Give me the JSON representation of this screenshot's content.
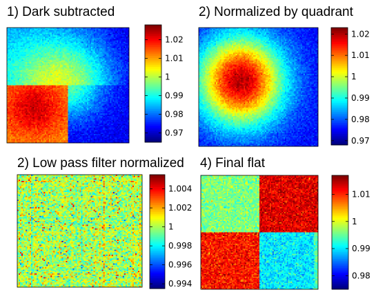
{
  "panels": [
    {
      "title": "1) Dark subtracted"
    },
    {
      "title": "2) Normalized by quadrant"
    },
    {
      "title": "2) Low pass filter normalized"
    },
    {
      "title": "4) Final flat"
    }
  ],
  "chart_data": [
    {
      "type": "heatmap",
      "title": "1) Dark subtracted",
      "description_pattern": "top half smooth low values, bottom-left warm high, bottom-right cool low",
      "colorbar": {
        "min": 0.965,
        "max": 1.028,
        "ticks": [
          0.97,
          0.98,
          0.99,
          1,
          1.01,
          1.02
        ],
        "tick_labels": [
          "0.97",
          "0.98",
          "0.99",
          "1",
          "1.01",
          "1.02"
        ]
      },
      "quadrant_means": {
        "top_left": 0.995,
        "top_right": 0.99,
        "bottom_left": 1.02,
        "bottom_right": 0.983
      },
      "grid": false
    },
    {
      "type": "heatmap",
      "title": "2) Normalized by quadrant",
      "colorbar": {
        "min": 0.968,
        "max": 1.023,
        "ticks": [
          0.97,
          0.98,
          0.99,
          1,
          1.01,
          1.02
        ],
        "tick_labels": [
          "0.97",
          "0.98",
          "0.99",
          "1",
          "1.01",
          "1.02"
        ]
      },
      "peak_value": 1.018,
      "edge_value": 0.975,
      "grid": false
    },
    {
      "type": "heatmap",
      "title": "2) Low pass filter normalized",
      "colorbar": {
        "min": 0.9935,
        "max": 1.0055,
        "ticks": [
          0.994,
          0.996,
          0.998,
          1,
          1.002,
          1.004
        ],
        "tick_labels": [
          "0.994",
          "0.996",
          "0.998",
          "1",
          "1.002",
          "1.004"
        ]
      },
      "mean": 1.0,
      "grid": false
    },
    {
      "type": "heatmap",
      "title": "4) Final flat",
      "colorbar": {
        "min": 0.975,
        "max": 1.017,
        "ticks": [
          0.98,
          0.99,
          1,
          1.01
        ],
        "tick_labels": [
          "0.98",
          "0.99",
          "1",
          "1.01"
        ]
      },
      "quadrant_means": {
        "top_left": 0.996,
        "top_right": 1.013,
        "bottom_left": 1.011,
        "bottom_right": 0.99
      },
      "grid": false
    }
  ],
  "colors": {
    "colormap": "jet",
    "axes_border": "#000000",
    "background": "#ffffff"
  }
}
